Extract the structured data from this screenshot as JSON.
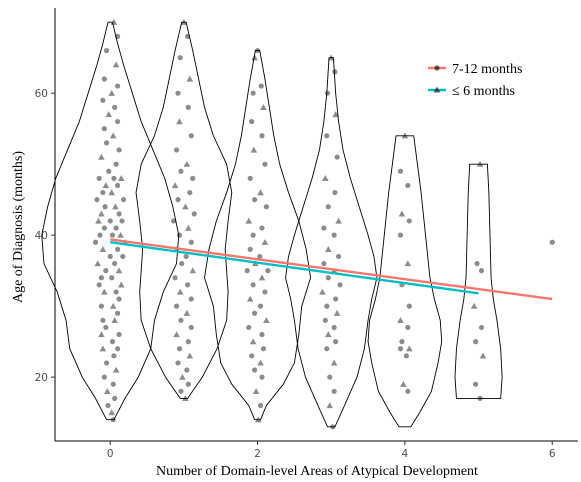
{
  "chart_data": {
    "type": "scatter",
    "xlabel": "Number of Domain-level Areas of Atypical Development",
    "ylabel": "Age of Diagnosis (months)",
    "xlim": [
      -0.75,
      6.35
    ],
    "ylim": [
      11,
      72
    ],
    "x_ticks": [
      0,
      2,
      4,
      6
    ],
    "y_ticks": [
      20,
      40,
      60
    ],
    "grid": false,
    "legend_position": "top-right",
    "series": [
      {
        "name": "7-12 months",
        "color": "#F8766D",
        "marker": "circle",
        "trend": {
          "x": [
            0,
            6
          ],
          "y": [
            39.4,
            31.0
          ]
        }
      },
      {
        "name": "≤ 6 months",
        "color": "#00BFC4",
        "marker": "triangle",
        "trend": {
          "x": [
            0,
            5
          ],
          "y": [
            39.0,
            31.8
          ]
        }
      }
    ],
    "violins": [
      {
        "x": 0,
        "range": [
          14,
          70
        ],
        "profile": [
          [
            14,
            0.05
          ],
          [
            17,
            0.2
          ],
          [
            20,
            0.38
          ],
          [
            24,
            0.55
          ],
          [
            28,
            0.6
          ],
          [
            32,
            0.72
          ],
          [
            36,
            0.9
          ],
          [
            40,
            0.93
          ],
          [
            44,
            0.85
          ],
          [
            48,
            0.74
          ],
          [
            52,
            0.58
          ],
          [
            56,
            0.42
          ],
          [
            60,
            0.3
          ],
          [
            64,
            0.18
          ],
          [
            67,
            0.1
          ],
          [
            70,
            0.03
          ]
        ]
      },
      {
        "x": 1,
        "range": [
          17,
          70
        ],
        "profile": [
          [
            17,
            0.05
          ],
          [
            20,
            0.25
          ],
          [
            24,
            0.45
          ],
          [
            28,
            0.58
          ],
          [
            32,
            0.6
          ],
          [
            35,
            0.58
          ],
          [
            38,
            0.56
          ],
          [
            42,
            0.6
          ],
          [
            46,
            0.65
          ],
          [
            50,
            0.58
          ],
          [
            54,
            0.4
          ],
          [
            58,
            0.28
          ],
          [
            62,
            0.2
          ],
          [
            66,
            0.12
          ],
          [
            70,
            0.03
          ]
        ]
      },
      {
        "x": 2,
        "range": [
          14,
          66
        ],
        "profile": [
          [
            14,
            0.04
          ],
          [
            16,
            0.12
          ],
          [
            19,
            0.35
          ],
          [
            22,
            0.5
          ],
          [
            26,
            0.56
          ],
          [
            30,
            0.6
          ],
          [
            34,
            0.72
          ],
          [
            38,
            0.66
          ],
          [
            42,
            0.56
          ],
          [
            46,
            0.42
          ],
          [
            50,
            0.3
          ],
          [
            54,
            0.22
          ],
          [
            58,
            0.16
          ],
          [
            62,
            0.1
          ],
          [
            66,
            0.03
          ]
        ]
      },
      {
        "x": 3,
        "range": [
          13,
          65
        ],
        "profile": [
          [
            13,
            0.05
          ],
          [
            16,
            0.18
          ],
          [
            20,
            0.35
          ],
          [
            24,
            0.45
          ],
          [
            28,
            0.5
          ],
          [
            31,
            0.55
          ],
          [
            34,
            0.62
          ],
          [
            37,
            0.58
          ],
          [
            40,
            0.5
          ],
          [
            44,
            0.38
          ],
          [
            48,
            0.26
          ],
          [
            52,
            0.16
          ],
          [
            56,
            0.1
          ],
          [
            60,
            0.06
          ],
          [
            65,
            0.03
          ]
        ]
      },
      {
        "x": 4,
        "range": [
          13,
          54
        ],
        "profile": [
          [
            13,
            0.08
          ],
          [
            15,
            0.2
          ],
          [
            18,
            0.36
          ],
          [
            22,
            0.45
          ],
          [
            25,
            0.5
          ],
          [
            28,
            0.48
          ],
          [
            31,
            0.4
          ],
          [
            34,
            0.34
          ],
          [
            38,
            0.3
          ],
          [
            42,
            0.26
          ],
          [
            46,
            0.22
          ],
          [
            50,
            0.17
          ],
          [
            54,
            0.12
          ]
        ]
      },
      {
        "x": 5,
        "range": [
          17,
          50
        ],
        "profile": [
          [
            17,
            0.3
          ],
          [
            20,
            0.32
          ],
          [
            24,
            0.3
          ],
          [
            28,
            0.25
          ],
          [
            31,
            0.2
          ],
          [
            34,
            0.17
          ],
          [
            38,
            0.16
          ],
          [
            42,
            0.15
          ],
          [
            46,
            0.14
          ],
          [
            50,
            0.12
          ]
        ]
      }
    ],
    "points": [
      [
        0.05,
        70,
        "t"
      ],
      [
        0.1,
        68,
        "c"
      ],
      [
        -0.05,
        66,
        "c"
      ],
      [
        0.08,
        64,
        "t"
      ],
      [
        -0.08,
        62,
        "c"
      ],
      [
        0.1,
        61,
        "c"
      ],
      [
        0.02,
        60,
        "t"
      ],
      [
        -0.1,
        59,
        "c"
      ],
      [
        0.06,
        58,
        "c"
      ],
      [
        -0.02,
        57,
        "t"
      ],
      [
        0.1,
        56,
        "c"
      ],
      [
        -0.08,
        55,
        "c"
      ],
      [
        0.04,
        54,
        "t"
      ],
      [
        -0.05,
        53,
        "c"
      ],
      [
        0.12,
        52,
        "c"
      ],
      [
        -0.12,
        51,
        "t"
      ],
      [
        0.08,
        50,
        "c"
      ],
      [
        -0.02,
        49,
        "c"
      ],
      [
        0.15,
        48,
        "t"
      ],
      [
        -0.15,
        48,
        "c"
      ],
      [
        0.05,
        48,
        "c"
      ],
      [
        -0.06,
        47,
        "t"
      ],
      [
        0.1,
        47,
        "c"
      ],
      [
        -0.1,
        46,
        "c"
      ],
      [
        0.02,
        46,
        "t"
      ],
      [
        0.18,
        45,
        "c"
      ],
      [
        -0.18,
        45,
        "c"
      ],
      [
        0.07,
        44,
        "t"
      ],
      [
        -0.07,
        44,
        "c"
      ],
      [
        0.12,
        43,
        "c"
      ],
      [
        -0.12,
        43,
        "t"
      ],
      [
        0.0,
        42,
        "c"
      ],
      [
        0.16,
        42,
        "c"
      ],
      [
        -0.16,
        42,
        "t"
      ],
      [
        0.08,
        41,
        "c"
      ],
      [
        -0.08,
        41,
        "c"
      ],
      [
        0.14,
        40,
        "t"
      ],
      [
        -0.14,
        40,
        "c"
      ],
      [
        0.03,
        40,
        "c"
      ],
      [
        0.2,
        39,
        "t"
      ],
      [
        -0.2,
        39,
        "c"
      ],
      [
        0.1,
        38,
        "c"
      ],
      [
        -0.1,
        38,
        "t"
      ],
      [
        0.0,
        37,
        "c"
      ],
      [
        0.17,
        37,
        "c"
      ],
      [
        -0.17,
        36,
        "t"
      ],
      [
        0.06,
        36,
        "c"
      ],
      [
        -0.06,
        35,
        "c"
      ],
      [
        0.12,
        35,
        "t"
      ],
      [
        -0.12,
        34,
        "c"
      ],
      [
        0.02,
        34,
        "c"
      ],
      [
        0.15,
        33,
        "t"
      ],
      [
        -0.15,
        33,
        "c"
      ],
      [
        0.08,
        32,
        "c"
      ],
      [
        -0.08,
        32,
        "t"
      ],
      [
        0.12,
        31,
        "c"
      ],
      [
        -0.12,
        30,
        "c"
      ],
      [
        0.04,
        30,
        "t"
      ],
      [
        0.1,
        29,
        "c"
      ],
      [
        -0.1,
        28,
        "c"
      ],
      [
        0.06,
        28,
        "t"
      ],
      [
        -0.06,
        27,
        "c"
      ],
      [
        0.12,
        26,
        "c"
      ],
      [
        -0.12,
        26,
        "t"
      ],
      [
        0.03,
        25,
        "c"
      ],
      [
        0.1,
        24,
        "c"
      ],
      [
        -0.1,
        24,
        "t"
      ],
      [
        0.05,
        23,
        "c"
      ],
      [
        -0.05,
        22,
        "c"
      ],
      [
        0.08,
        21,
        "t"
      ],
      [
        -0.08,
        20,
        "c"
      ],
      [
        0.04,
        19,
        "c"
      ],
      [
        -0.04,
        18,
        "t"
      ],
      [
        0.06,
        17,
        "c"
      ],
      [
        -0.03,
        16,
        "c"
      ],
      [
        0.02,
        15,
        "t"
      ],
      [
        0.04,
        14,
        "c"
      ],
      [
        1.0,
        70,
        "t"
      ],
      [
        1.05,
        68,
        "c"
      ],
      [
        0.95,
        65,
        "c"
      ],
      [
        1.08,
        62,
        "t"
      ],
      [
        0.92,
        60,
        "c"
      ],
      [
        1.06,
        58,
        "c"
      ],
      [
        0.94,
        56,
        "t"
      ],
      [
        1.1,
        54,
        "c"
      ],
      [
        0.9,
        52,
        "c"
      ],
      [
        1.04,
        50,
        "t"
      ],
      [
        0.96,
        49,
        "c"
      ],
      [
        1.12,
        48,
        "c"
      ],
      [
        0.88,
        47,
        "t"
      ],
      [
        1.08,
        46,
        "c"
      ],
      [
        0.92,
        45,
        "c"
      ],
      [
        1.02,
        44,
        "t"
      ],
      [
        1.14,
        43,
        "c"
      ],
      [
        0.86,
        42,
        "c"
      ],
      [
        1.06,
        41,
        "t"
      ],
      [
        0.94,
        40,
        "c"
      ],
      [
        1.1,
        39,
        "c"
      ],
      [
        0.9,
        38,
        "t"
      ],
      [
        1.03,
        37,
        "c"
      ],
      [
        0.97,
        36,
        "c"
      ],
      [
        1.12,
        35,
        "t"
      ],
      [
        0.88,
        34,
        "c"
      ],
      [
        1.05,
        33,
        "c"
      ],
      [
        0.95,
        32,
        "t"
      ],
      [
        1.1,
        31,
        "c"
      ],
      [
        0.9,
        30,
        "c"
      ],
      [
        1.04,
        29,
        "t"
      ],
      [
        0.96,
        28,
        "c"
      ],
      [
        1.1,
        27,
        "c"
      ],
      [
        0.9,
        26,
        "t"
      ],
      [
        1.06,
        25,
        "c"
      ],
      [
        0.94,
        24,
        "c"
      ],
      [
        1.08,
        23,
        "t"
      ],
      [
        0.92,
        22,
        "c"
      ],
      [
        1.04,
        21,
        "c"
      ],
      [
        0.98,
        20,
        "t"
      ],
      [
        1.06,
        19,
        "c"
      ],
      [
        0.96,
        18,
        "c"
      ],
      [
        1.02,
        17,
        "t"
      ],
      [
        2.0,
        66,
        "c"
      ],
      [
        1.96,
        65,
        "t"
      ],
      [
        2.05,
        61,
        "c"
      ],
      [
        1.94,
        60,
        "c"
      ],
      [
        2.08,
        58,
        "t"
      ],
      [
        1.92,
        56,
        "c"
      ],
      [
        2.06,
        54,
        "c"
      ],
      [
        1.95,
        52,
        "t"
      ],
      [
        2.1,
        50,
        "c"
      ],
      [
        1.9,
        48,
        "c"
      ],
      [
        2.04,
        46,
        "t"
      ],
      [
        1.96,
        45,
        "c"
      ],
      [
        2.12,
        44,
        "c"
      ],
      [
        1.88,
        42,
        "t"
      ],
      [
        2.06,
        41,
        "c"
      ],
      [
        1.94,
        40,
        "c"
      ],
      [
        2.1,
        39,
        "t"
      ],
      [
        1.9,
        38,
        "c"
      ],
      [
        2.03,
        37,
        "c"
      ],
      [
        1.97,
        36,
        "t"
      ],
      [
        2.14,
        35,
        "c"
      ],
      [
        1.86,
        35,
        "c"
      ],
      [
        2.06,
        34,
        "t"
      ],
      [
        1.94,
        33,
        "c"
      ],
      [
        2.1,
        32,
        "c"
      ],
      [
        1.9,
        31,
        "t"
      ],
      [
        2.04,
        30,
        "c"
      ],
      [
        1.96,
        29,
        "c"
      ],
      [
        2.12,
        28,
        "t"
      ],
      [
        1.88,
        27,
        "c"
      ],
      [
        2.06,
        26,
        "c"
      ],
      [
        1.94,
        25,
        "t"
      ],
      [
        2.08,
        24,
        "c"
      ],
      [
        1.92,
        23,
        "c"
      ],
      [
        2.04,
        22,
        "t"
      ],
      [
        1.96,
        21,
        "c"
      ],
      [
        2.06,
        20,
        "c"
      ],
      [
        1.98,
        18,
        "t"
      ],
      [
        2.04,
        16,
        "c"
      ],
      [
        2.01,
        14,
        "t"
      ],
      [
        3.0,
        65,
        "t"
      ],
      [
        3.05,
        63,
        "c"
      ],
      [
        2.95,
        60,
        "c"
      ],
      [
        3.06,
        57,
        "t"
      ],
      [
        2.94,
        54,
        "c"
      ],
      [
        3.08,
        51,
        "c"
      ],
      [
        2.92,
        48,
        "t"
      ],
      [
        3.05,
        46,
        "c"
      ],
      [
        2.96,
        44,
        "c"
      ],
      [
        3.1,
        42,
        "t"
      ],
      [
        2.9,
        41,
        "c"
      ],
      [
        3.04,
        40,
        "c"
      ],
      [
        2.96,
        38,
        "t"
      ],
      [
        3.1,
        37,
        "c"
      ],
      [
        2.9,
        36,
        "c"
      ],
      [
        3.04,
        35,
        "t"
      ],
      [
        2.96,
        34,
        "c"
      ],
      [
        3.12,
        33,
        "c"
      ],
      [
        2.88,
        32,
        "t"
      ],
      [
        3.06,
        31,
        "c"
      ],
      [
        2.94,
        30,
        "c"
      ],
      [
        3.08,
        29,
        "t"
      ],
      [
        2.92,
        28,
        "c"
      ],
      [
        3.04,
        27,
        "c"
      ],
      [
        2.96,
        26,
        "t"
      ],
      [
        3.06,
        25,
        "c"
      ],
      [
        2.94,
        24,
        "c"
      ],
      [
        3.04,
        22,
        "t"
      ],
      [
        2.98,
        20,
        "c"
      ],
      [
        3.04,
        18,
        "c"
      ],
      [
        2.98,
        16,
        "t"
      ],
      [
        3.02,
        13,
        "c"
      ],
      [
        4.0,
        54,
        "t"
      ],
      [
        3.94,
        49,
        "c"
      ],
      [
        4.04,
        47,
        "c"
      ],
      [
        3.96,
        43,
        "t"
      ],
      [
        4.06,
        42,
        "c"
      ],
      [
        3.94,
        40,
        "c"
      ],
      [
        4.04,
        36,
        "t"
      ],
      [
        3.96,
        33,
        "c"
      ],
      [
        4.06,
        30,
        "c"
      ],
      [
        3.94,
        28,
        "t"
      ],
      [
        4.04,
        27,
        "c"
      ],
      [
        3.96,
        25,
        "c"
      ],
      [
        4.06,
        24,
        "t"
      ],
      [
        3.94,
        24,
        "c"
      ],
      [
        4.02,
        23,
        "c"
      ],
      [
        3.98,
        19,
        "t"
      ],
      [
        4.04,
        18,
        "c"
      ],
      [
        5.02,
        50,
        "t"
      ],
      [
        4.98,
        36,
        "c"
      ],
      [
        5.04,
        35,
        "c"
      ],
      [
        4.94,
        30,
        "t"
      ],
      [
        5.04,
        27,
        "c"
      ],
      [
        4.96,
        25,
        "c"
      ],
      [
        5.06,
        23,
        "t"
      ],
      [
        4.96,
        19,
        "c"
      ],
      [
        5.02,
        17,
        "c"
      ],
      [
        6.0,
        39,
        "c"
      ]
    ]
  }
}
